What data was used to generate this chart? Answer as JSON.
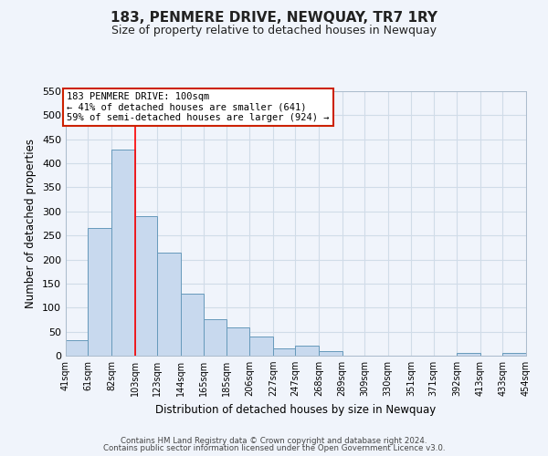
{
  "title": "183, PENMERE DRIVE, NEWQUAY, TR7 1RY",
  "subtitle": "Size of property relative to detached houses in Newquay",
  "xlabel": "Distribution of detached houses by size in Newquay",
  "ylabel": "Number of detached properties",
  "bar_edges": [
    41,
    61,
    82,
    103,
    123,
    144,
    165,
    185,
    206,
    227,
    247,
    268,
    289,
    309,
    330,
    351,
    371,
    392,
    413,
    433,
    454
  ],
  "bar_heights": [
    32,
    265,
    428,
    291,
    214,
    129,
    76,
    59,
    40,
    15,
    20,
    9,
    0,
    0,
    0,
    0,
    0,
    5,
    0,
    5
  ],
  "bar_color": "#c8d9ee",
  "bar_edgecolor": "#6699bb",
  "reference_line_x": 103,
  "ylim": [
    0,
    550
  ],
  "yticks": [
    0,
    50,
    100,
    150,
    200,
    250,
    300,
    350,
    400,
    450,
    500,
    550
  ],
  "x_tick_labels": [
    "41sqm",
    "61sqm",
    "82sqm",
    "103sqm",
    "123sqm",
    "144sqm",
    "165sqm",
    "185sqm",
    "206sqm",
    "227sqm",
    "247sqm",
    "268sqm",
    "289sqm",
    "309sqm",
    "330sqm",
    "351sqm",
    "371sqm",
    "392sqm",
    "413sqm",
    "433sqm",
    "454sqm"
  ],
  "annotation_line1": "183 PENMERE DRIVE: 100sqm",
  "annotation_line2": "← 41% of detached houses are smaller (641)",
  "annotation_line3": "59% of semi-detached houses are larger (924) →",
  "footer_line1": "Contains HM Land Registry data © Crown copyright and database right 2024.",
  "footer_line2": "Contains public sector information licensed under the Open Government Licence v3.0.",
  "background_color": "#f0f4fb",
  "grid_color": "#d0dce8"
}
